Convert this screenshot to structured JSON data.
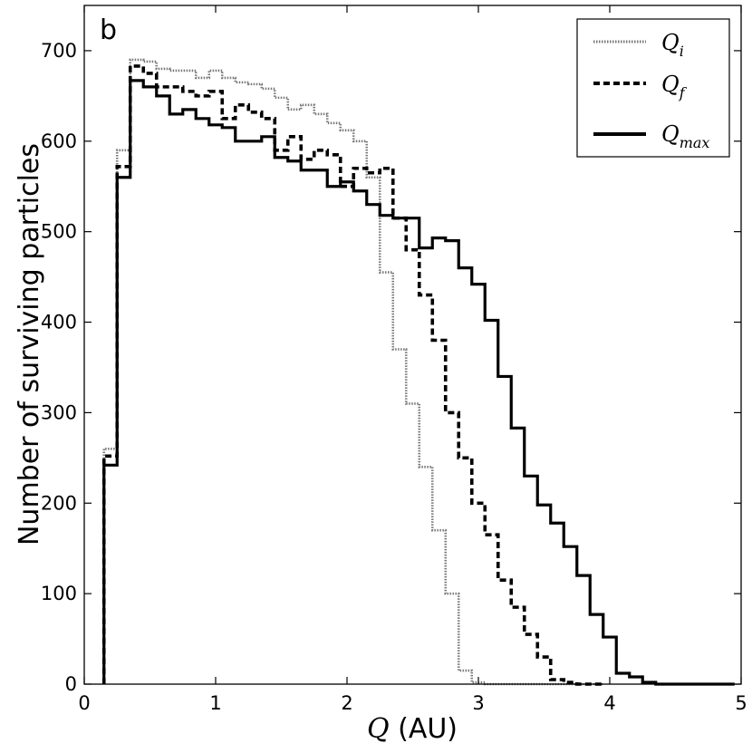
{
  "chart_data": {
    "type": "line",
    "panel_label": "b",
    "xlabel_var": "Q",
    "xlabel_unit": " (AU)",
    "ylabel": "Number of surviving particles",
    "xlim": [
      0,
      5
    ],
    "ylim": [
      0,
      750
    ],
    "xticks": [
      0,
      1,
      2,
      3,
      4,
      5
    ],
    "yticks": [
      0,
      100,
      200,
      300,
      400,
      500,
      600,
      700
    ],
    "grid": false,
    "legend_position": "top-right",
    "bin_edges": [
      0.15,
      0.25,
      0.35,
      0.45,
      0.55,
      0.65,
      0.75,
      0.85,
      0.95,
      1.05,
      1.15,
      1.25,
      1.35,
      1.45,
      1.55,
      1.65,
      1.75,
      1.85,
      1.95,
      2.05,
      2.15,
      2.25,
      2.35,
      2.45,
      2.55,
      2.65,
      2.75,
      2.85,
      2.95,
      3.05,
      3.15,
      3.25,
      3.35,
      3.45,
      3.55,
      3.65,
      3.75,
      3.85,
      3.95,
      4.05,
      4.15,
      4.25,
      4.35,
      4.45,
      4.55,
      4.65,
      4.75,
      4.85,
      4.95
    ],
    "series": [
      {
        "name": "Q_i",
        "legend_base": "Q",
        "legend_sub": "i",
        "style": "dotted",
        "values": [
          260,
          590,
          690,
          688,
          680,
          678,
          678,
          670,
          678,
          670,
          665,
          663,
          658,
          648,
          635,
          640,
          630,
          620,
          612,
          600,
          560,
          455,
          370,
          310,
          240,
          170,
          100,
          15,
          2,
          0,
          0,
          0,
          0,
          0,
          0,
          0,
          0,
          0
        ]
      },
      {
        "name": "Q_f",
        "legend_base": "Q",
        "legend_sub": "f",
        "style": "dashed",
        "values": [
          252,
          572,
          683,
          675,
          660,
          660,
          655,
          650,
          655,
          625,
          640,
          632,
          625,
          590,
          605,
          580,
          590,
          585,
          550,
          570,
          565,
          570,
          515,
          480,
          430,
          380,
          300,
          250,
          200,
          165,
          115,
          85,
          55,
          30,
          5,
          2,
          0,
          0
        ]
      },
      {
        "name": "Q_max",
        "legend_base": "Q",
        "legend_sub": "max",
        "style": "solid",
        "values": [
          242,
          560,
          667,
          660,
          650,
          630,
          635,
          625,
          618,
          615,
          600,
          600,
          605,
          582,
          578,
          568,
          568,
          550,
          555,
          545,
          530,
          518,
          515,
          515,
          482,
          493,
          490,
          460,
          442,
          402,
          340,
          283,
          230,
          198,
          178,
          152,
          120,
          77,
          52,
          12,
          8,
          2,
          0,
          0,
          0,
          0,
          0,
          0
        ]
      }
    ],
    "series_start_index": [
      0,
      0,
      0
    ]
  }
}
